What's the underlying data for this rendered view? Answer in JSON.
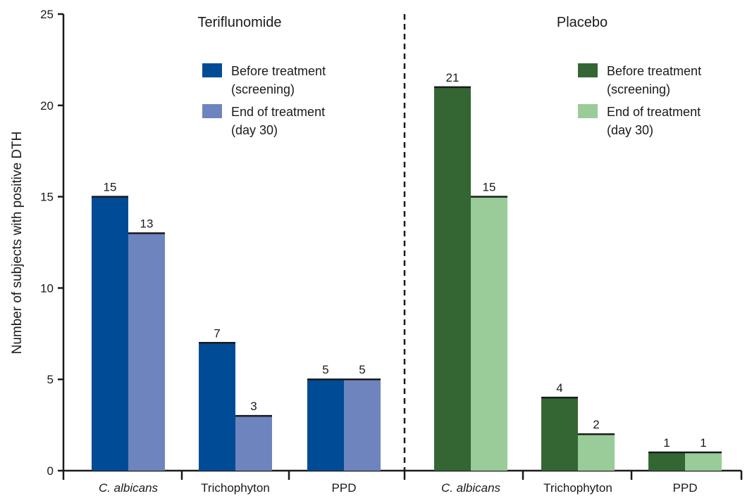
{
  "chart_data": {
    "type": "bar",
    "ylabel": "Number of subjects with positive DTH",
    "ylim": [
      0,
      25
    ],
    "yticks": [
      0,
      5,
      10,
      15,
      20,
      25
    ],
    "panels": [
      {
        "title": "Teriflunomide",
        "categories": [
          "C. albicans",
          "Trichophyton",
          "PPD"
        ],
        "italic_categories": [
          "C. albicans"
        ],
        "series": [
          {
            "name": "Before treatment (screening)",
            "legend_lines": [
              "Before treatment",
              "(screening)"
            ],
            "color": "#004b96",
            "values": [
              15,
              7,
              5
            ]
          },
          {
            "name": "End of treatment (day 30)",
            "legend_lines": [
              "End of treatment",
              "(day 30)"
            ],
            "color": "#6d84be",
            "values": [
              13,
              3,
              5
            ]
          }
        ]
      },
      {
        "title": "Placebo",
        "categories": [
          "C. albicans",
          "Trichophyton",
          "PPD"
        ],
        "italic_categories": [
          "C. albicans"
        ],
        "series": [
          {
            "name": "Before treatment (screening)",
            "legend_lines": [
              "Before treatment",
              "(screening)"
            ],
            "color": "#336633",
            "values": [
              21,
              4,
              1
            ]
          },
          {
            "name": "End of treatment (day 30)",
            "legend_lines": [
              "End of treatment",
              "(day 30)"
            ],
            "color": "#99cc99",
            "values": [
              15,
              2,
              1
            ]
          }
        ]
      }
    ],
    "separator": "dashed vertical line between panels",
    "grid": false
  }
}
